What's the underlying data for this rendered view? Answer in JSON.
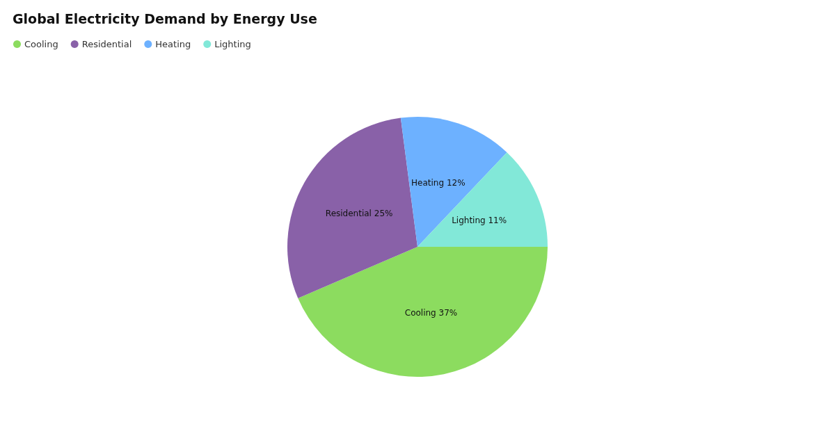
{
  "chart_data": {
    "type": "pie",
    "title": "Global Electricity Demand by Energy Use",
    "categories": [
      "Cooling",
      "Residential",
      "Heating",
      "Lighting"
    ],
    "values": [
      37,
      25,
      12,
      11
    ],
    "value_labels": [
      "37%",
      "25%",
      "12%",
      "11%"
    ],
    "colors": [
      "#8cdc5f",
      "#8961a8",
      "#6db1ff",
      "#82e8d8"
    ],
    "legend": "top left"
  }
}
